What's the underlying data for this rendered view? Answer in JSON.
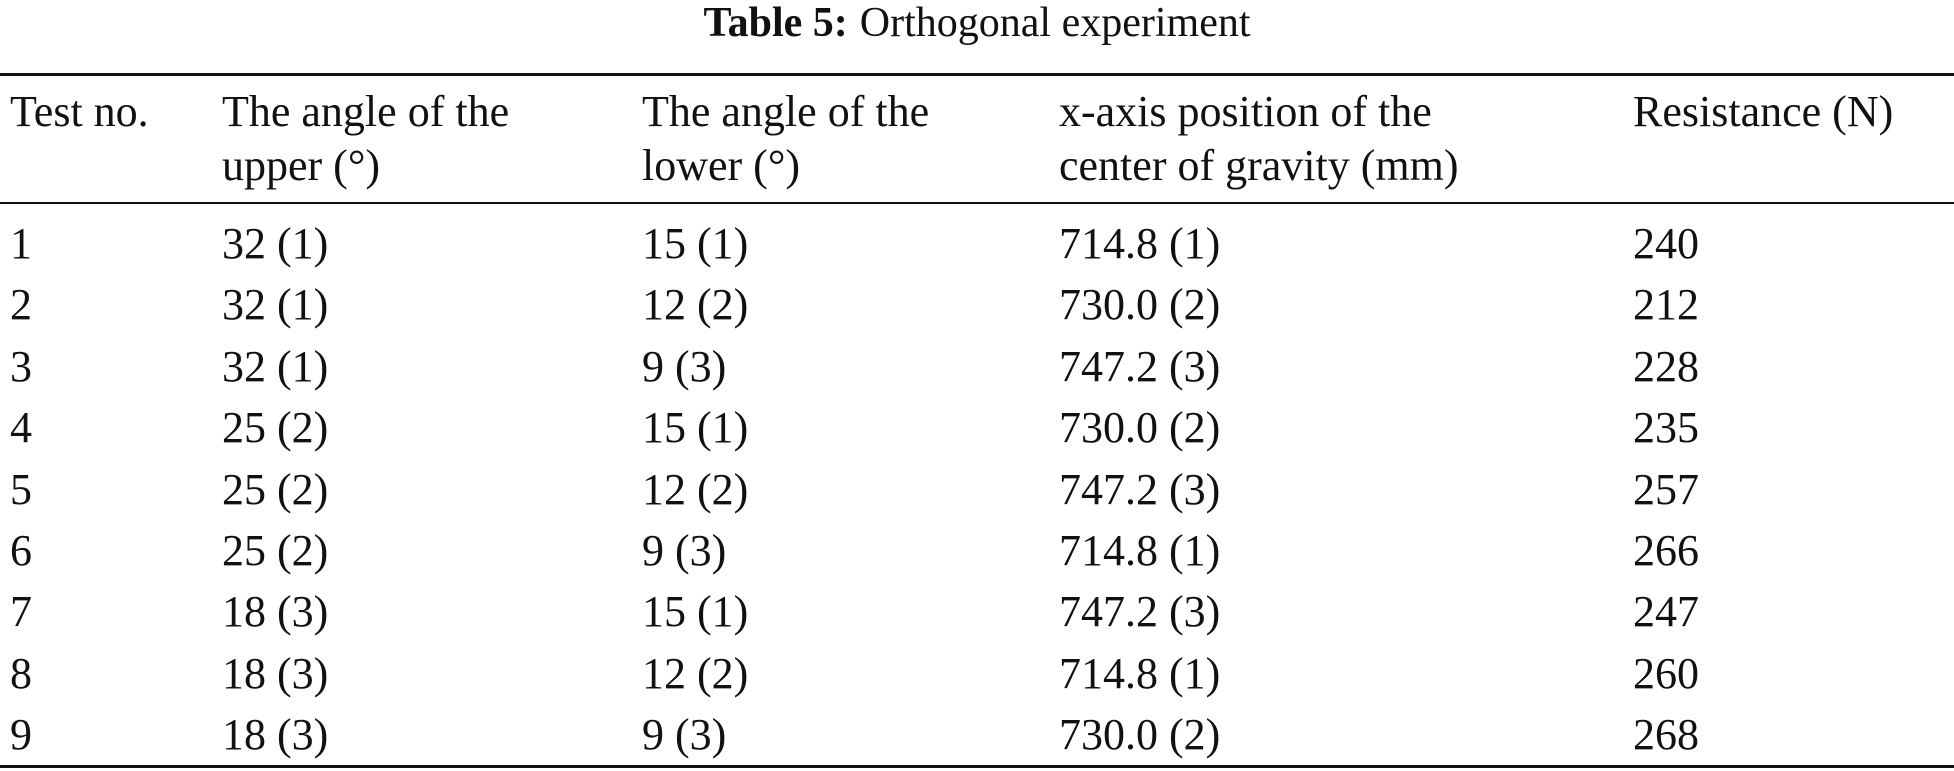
{
  "caption": {
    "label": "Table 5:",
    "text": "Orthogonal experiment"
  },
  "table": {
    "header": [
      [
        "Test no."
      ],
      [
        "The angle of the",
        "upper (°)"
      ],
      [
        "The angle of the",
        "lower (°)"
      ],
      [
        "x-axis position of the",
        "center of gravity (mm)"
      ],
      [
        "Resistance (N)"
      ]
    ],
    "rows": [
      [
        "1",
        "32 (1)",
        "15 (1)",
        "714.8 (1)",
        "240"
      ],
      [
        "2",
        "32 (1)",
        "12 (2)",
        "730.0 (2)",
        "212"
      ],
      [
        "3",
        "32 (1)",
        "9 (3)",
        "747.2 (3)",
        "228"
      ],
      [
        "4",
        "25 (2)",
        "15 (1)",
        "730.0 (2)",
        "235"
      ],
      [
        "5",
        "25 (2)",
        "12 (2)",
        "747.2 (3)",
        "257"
      ],
      [
        "6",
        "25 (2)",
        "9 (3)",
        "714.8 (1)",
        "266"
      ],
      [
        "7",
        "18 (3)",
        "15 (1)",
        "747.2 (3)",
        "247"
      ],
      [
        "8",
        "18 (3)",
        "12 (2)",
        "714.8 (1)",
        "260"
      ],
      [
        "9",
        "18 (3)",
        "9 (3)",
        "730.0 (2)",
        "268"
      ]
    ]
  }
}
